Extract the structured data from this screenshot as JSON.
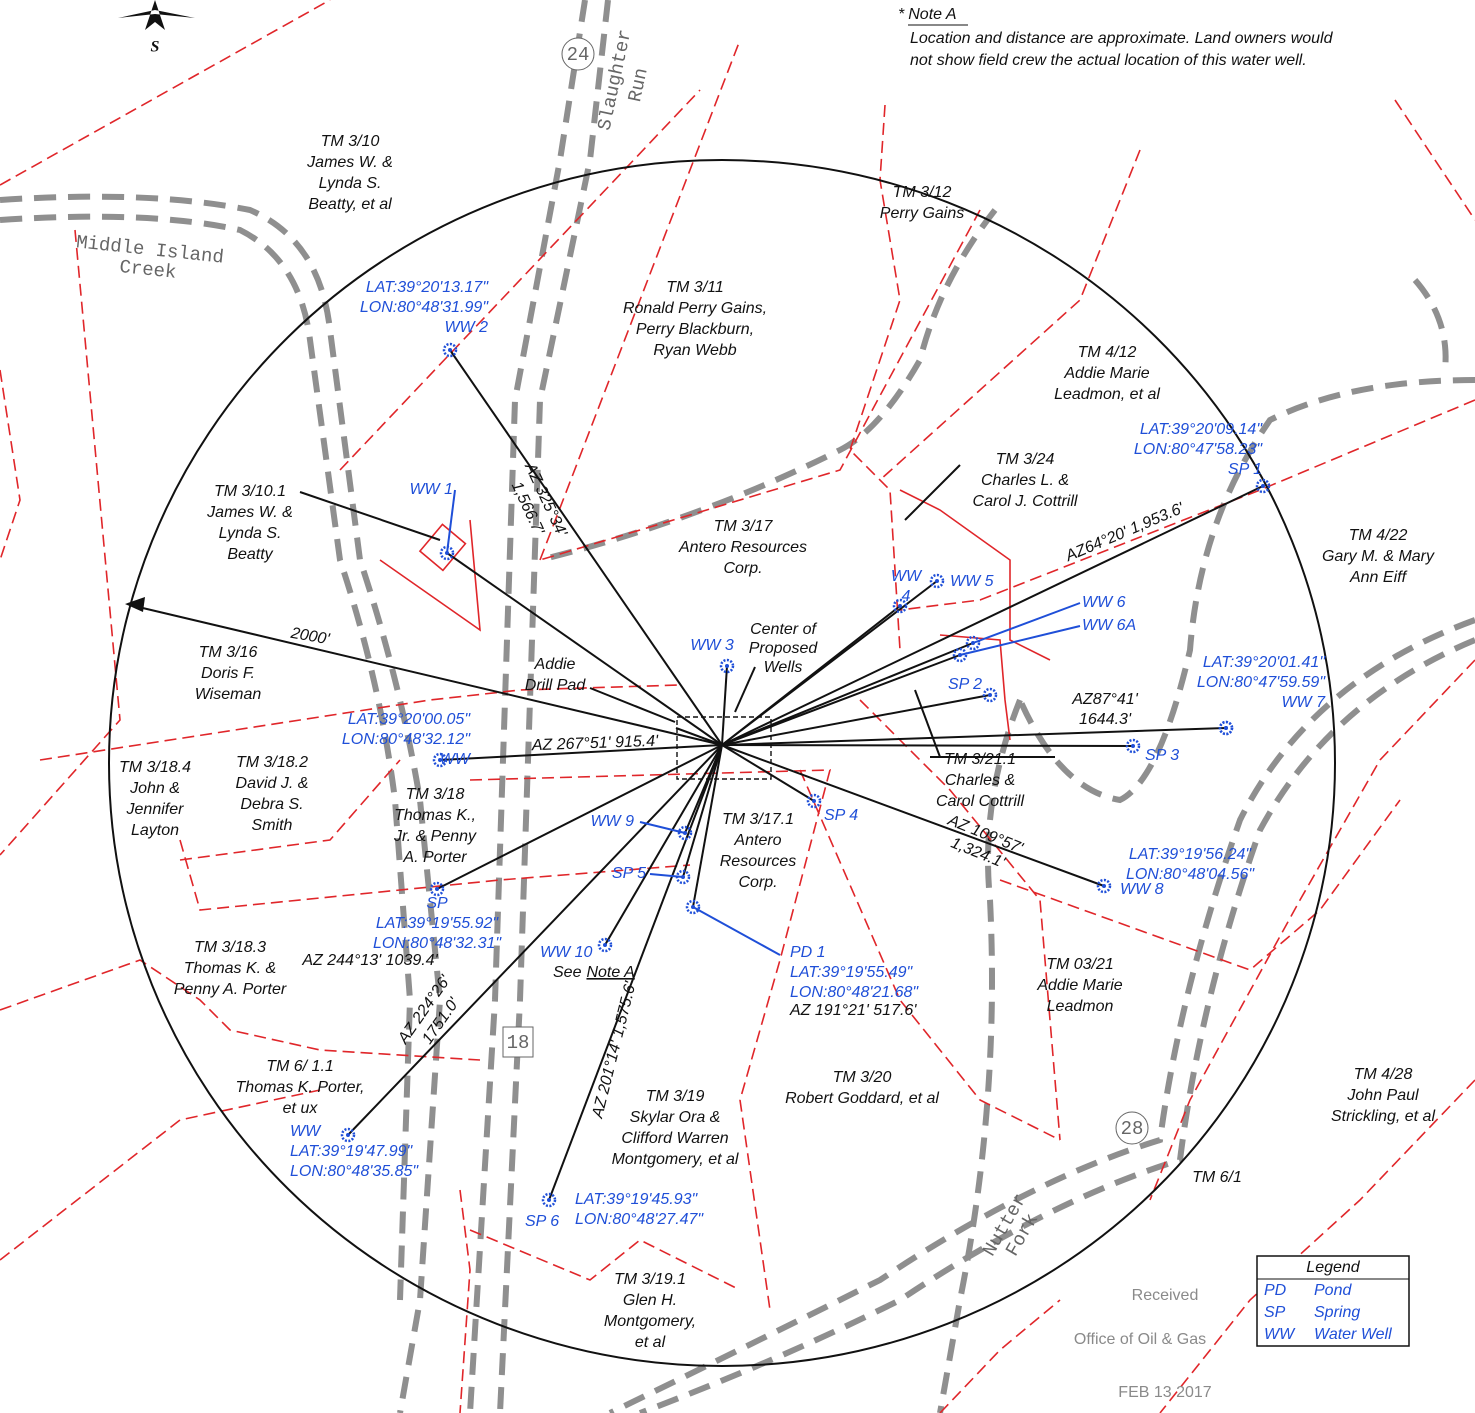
{
  "north_arrow": "S",
  "note": {
    "marker": "*",
    "title": "Note A",
    "lines": [
      "Location and distance are approximate. Land owners would",
      "not show field crew the actual location of this water well."
    ]
  },
  "roads": [
    "24",
    "18",
    "28"
  ],
  "streams": [
    [
      "Slaughter",
      "Run"
    ],
    [
      "Middle Island",
      "Creek"
    ],
    [
      "Nutter",
      "Fork"
    ]
  ],
  "parcels": [
    [
      "TM 3/10",
      "James W. &",
      "Lynda S.",
      "Beatty, et al"
    ],
    [
      "TM 3/12",
      "Perry Gains"
    ],
    [
      "TM 3/11",
      "Ronald Perry Gains,",
      "Perry Blackburn,",
      "Ryan Webb"
    ],
    [
      "TM 4/12",
      "Addie Marie",
      "Leadmon, et al"
    ],
    [
      "TM 3/10.1",
      "James W. &",
      "Lynda S.",
      "Beatty"
    ],
    [
      "TM 3/24",
      "Charles L. &",
      "Carol J. Cottrill"
    ],
    [
      "TM 3/17",
      "Antero Resources",
      "Corp."
    ],
    [
      "TM 4/22",
      "Gary M. & Mary",
      "Ann Eiff"
    ],
    [
      "TM 3/16",
      "Doris F.",
      "Wiseman"
    ],
    [
      "TM 3/18.4",
      "John &",
      "Jennifer",
      "Layton"
    ],
    [
      "TM 3/18.2",
      "David J. &",
      "Debra S.",
      "Smith"
    ],
    [
      "TM 3/18",
      "Thomas K.,",
      "Jr. & Penny",
      "A. Porter"
    ],
    [
      "TM 3/17.1",
      "Antero",
      "Resources",
      "Corp."
    ],
    [
      "TM 3/21.1",
      "Charles &",
      "Carol Cottrill"
    ],
    [
      "TM 3/18.3",
      "Thomas K. &",
      "Penny A. Porter"
    ],
    [
      "TM 03/21",
      "Addie Marie",
      "Leadmon"
    ],
    [
      "TM 6/ 1.1",
      "Thomas K. Porter,",
      "et ux"
    ],
    [
      "TM 3/19",
      "Skylar Ora &",
      "Clifford Warren",
      "Montgomery, et al"
    ],
    [
      "TM 3/20",
      "Robert Goddard, et al"
    ],
    [
      "TM 4/28",
      "John Paul",
      "Strickling, et al"
    ],
    [
      "TM 6/1"
    ],
    [
      "TM 3/19.1",
      "Glen H.",
      "Montgomery,",
      "et al"
    ]
  ],
  "site_labels": [
    [
      "Addie",
      "Drill Pad"
    ],
    [
      "Center of",
      "Proposed",
      "Wells"
    ]
  ],
  "features": [
    [
      "LAT:39°20'13.17\"",
      "LON:80°48'31.99\"",
      "WW 2"
    ],
    [
      "WW 1"
    ],
    [
      "LAT:39°20'09.14\"",
      "LON:80°47'58.23\"",
      "SP 1"
    ],
    [
      "WW 5"
    ],
    [
      "WW",
      "4"
    ],
    [
      "WW 6"
    ],
    [
      "WW 6A"
    ],
    [
      "WW 3"
    ],
    [
      "SP 2"
    ],
    [
      "LAT:39°20'01.41\"",
      "LON:80°47'59.59\"",
      "WW 7"
    ],
    [
      "LAT:39°20'00.05\"",
      "LON:80°48'32.12\"",
      "WW"
    ],
    [
      "SP 3"
    ],
    [
      "SP 4"
    ],
    [
      "WW 9"
    ],
    [
      "SP 5"
    ],
    [
      "SP",
      "LAT:39°19'55.92\"",
      "LON:80°48'32.31\""
    ],
    [
      "LAT:39°19'56.24\"",
      "LON:80°48'04.56\""
    ],
    [
      "WW 8"
    ],
    [
      "WW 10"
    ],
    [
      "PD 1",
      "LAT:39°19'55.49\"",
      "LON:80°48'21.68\""
    ],
    [
      "WW",
      "LAT:39°19'47.99\"",
      "LON:80°48'35.85\""
    ],
    [
      "LAT:39°19'45.93\"",
      "LON:80°48'27.47\""
    ],
    [
      "SP 6"
    ]
  ],
  "bearings": [
    [
      "AZ 325°34'",
      "1,566.7'"
    ],
    [
      "AZ64°20' 1,953.6'"
    ],
    [
      "2000'"
    ],
    [
      "AZ 267°51' 915.4'"
    ],
    [
      "AZ87°41'",
      "1644.3'"
    ],
    [
      "AZ 109°57'",
      "1,324.1'"
    ],
    [
      "AZ 224°26'",
      "1751.0'"
    ],
    [
      "AZ 201°14' 1,575.6'"
    ],
    [
      "AZ 244°13' 1039.4'"
    ],
    [
      "AZ 191°21' 517.6'"
    ]
  ],
  "note_ref": [
    "See",
    "Note A"
  ],
  "legend": {
    "title": "Legend",
    "items": [
      [
        "PD",
        "Pond"
      ],
      [
        "SP",
        "Spring"
      ],
      [
        "WW",
        "Water Well"
      ]
    ]
  },
  "stamp": {
    "received": "Received",
    "office": "Office of Oil & Gas",
    "date": "FEB 13 2017"
  }
}
